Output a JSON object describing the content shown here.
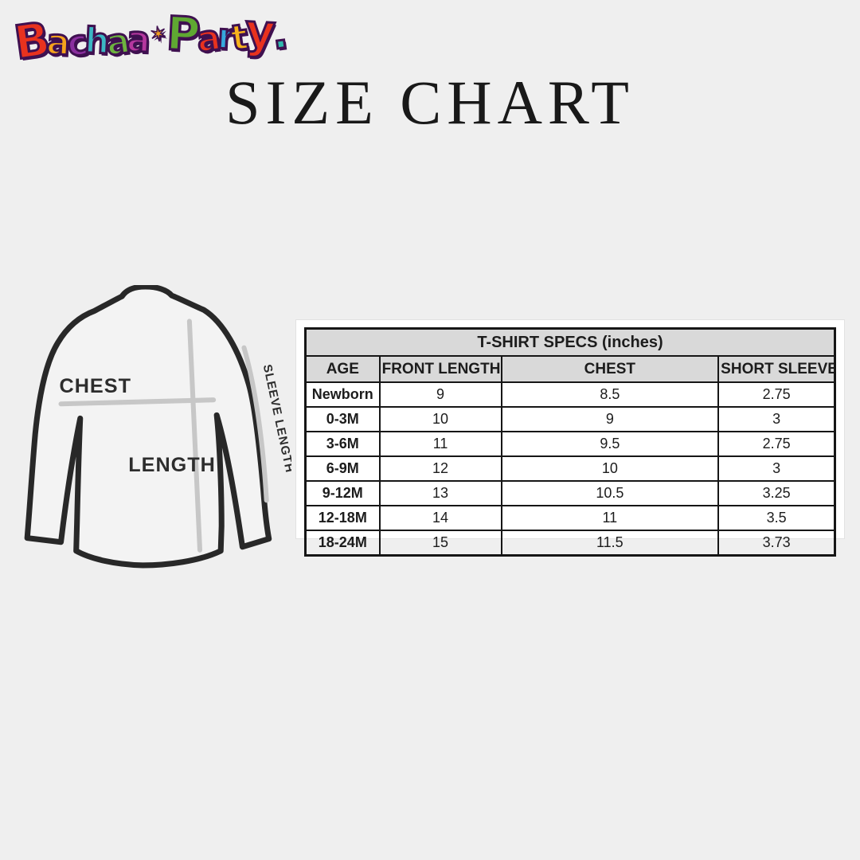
{
  "logo": {
    "brand": "Bachaa Party",
    "letters": [
      {
        "ch": "B",
        "color": "#e8321e"
      },
      {
        "ch": "a",
        "color": "#f5a31c"
      },
      {
        "ch": "c",
        "color": "#8a2f9e"
      },
      {
        "ch": "h",
        "color": "#3bb6c4"
      },
      {
        "ch": "a",
        "color": "#6db33f"
      },
      {
        "ch": "a",
        "color": "#b5379e"
      },
      {
        "ch": "✶",
        "color": "#f5a31c",
        "name": "kid-figure-icon"
      },
      {
        "ch": "P",
        "color": "#5fa832"
      },
      {
        "ch": "a",
        "color": "#e8321e"
      },
      {
        "ch": "r",
        "color": "#35a8dc"
      },
      {
        "ch": "t",
        "color": "#f7b31c"
      },
      {
        "ch": "y",
        "color": "#e8321e"
      },
      {
        "ch": ".",
        "color": "#2fb8ad",
        "name": "logo-period"
      }
    ]
  },
  "title": "SIZE CHART",
  "diagram": {
    "labels": {
      "chest": "CHEST",
      "length": "LENGTH",
      "sleeve": "SLEEVE LENGTH"
    }
  },
  "chart_data": {
    "type": "table",
    "title": "T-SHIRT SPECS (inches)",
    "columns": [
      "AGE",
      "FRONT LENGTH",
      "CHEST",
      "SHORT SLEEVE"
    ],
    "rows": [
      [
        "Newborn",
        "9",
        "8.5",
        "2.75"
      ],
      [
        "0-3M",
        "10",
        "9",
        "3"
      ],
      [
        "3-6M",
        "11",
        "9.5",
        "2.75"
      ],
      [
        "6-9M",
        "12",
        "10",
        "3"
      ],
      [
        "9-12M",
        "13",
        "10.5",
        "3.25"
      ],
      [
        "12-18M",
        "14",
        "11",
        "3.5"
      ],
      [
        "18-24M",
        "15",
        "11.5",
        "3.73"
      ]
    ]
  },
  "colors": {
    "background": "#efefef",
    "panel": "#ffffff",
    "table_header_bg": "#d9d9d9",
    "table_border": "#161616",
    "text": "#1c1c1c",
    "measure_line": "#c7c7c7",
    "shirt_outline": "#282828"
  }
}
